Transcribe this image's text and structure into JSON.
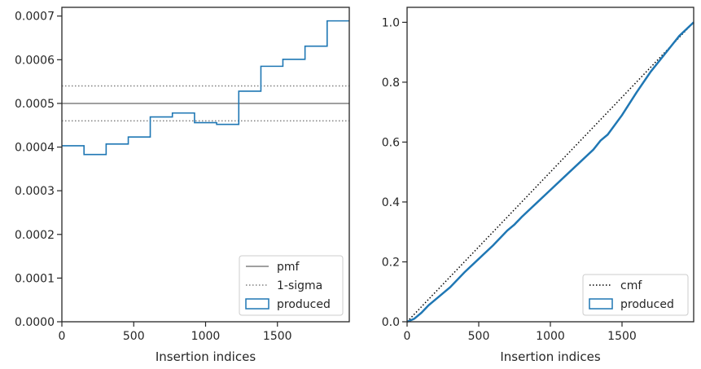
{
  "chart_data": [
    {
      "type": "line",
      "xlabel": "Insertion indices",
      "ylabel": "",
      "xlim": [
        0,
        2000
      ],
      "ylim": [
        0,
        0.00072
      ],
      "xticks": [
        0,
        500,
        1000,
        1500
      ],
      "xtick_labels": [
        "0",
        "500",
        "1000",
        "1500"
      ],
      "yticks": [
        0,
        0.0001,
        0.0002,
        0.0003,
        0.0004,
        0.0005,
        0.0006,
        0.0007
      ],
      "ytick_labels": [
        "0.0000",
        "0.0001",
        "0.0002",
        "0.0003",
        "0.0004",
        "0.0005",
        "0.0006",
        "0.0007"
      ],
      "grid": false,
      "legend_position": "lower-right",
      "series": [
        {
          "name": "pmf",
          "kind": "hline",
          "y": 0.0005,
          "color": "#808080",
          "style": "solid"
        },
        {
          "name": "1-sigma",
          "kind": "hlines",
          "y": [
            0.00054,
            0.00046
          ],
          "color": "#808080",
          "style": "dotted"
        },
        {
          "name": "produced",
          "kind": "step-histogram",
          "color": "#1f77b4",
          "bin_edges": [
            0,
            154,
            308,
            462,
            615,
            769,
            923,
            1077,
            1231,
            1385,
            1538,
            1692,
            1846,
            2000
          ],
          "values": [
            0.000403,
            0.000383,
            0.000407,
            0.000423,
            0.000469,
            0.000478,
            0.000456,
            0.000452,
            0.000528,
            0.000585,
            0.000601,
            0.000631,
            0.000689
          ]
        }
      ],
      "legend": [
        "pmf",
        "1-sigma",
        "produced"
      ]
    },
    {
      "type": "line",
      "xlabel": "Insertion indices",
      "ylabel": "",
      "xlim": [
        0,
        2000
      ],
      "ylim": [
        0,
        1.05
      ],
      "xticks": [
        0,
        500,
        1000,
        1500
      ],
      "xtick_labels": [
        "0",
        "500",
        "1000",
        "1500"
      ],
      "yticks": [
        0,
        0.2,
        0.4,
        0.6,
        0.8,
        1.0
      ],
      "ytick_labels": [
        "0.0",
        "0.2",
        "0.4",
        "0.6",
        "0.8",
        "1.0"
      ],
      "grid": false,
      "legend_position": "lower-right",
      "series": [
        {
          "name": "cmf",
          "kind": "line",
          "x": [
            0,
            2000
          ],
          "y": [
            0,
            1
          ],
          "color": "#000000",
          "style": "dotted"
        },
        {
          "name": "produced",
          "kind": "cumulative",
          "color": "#1f77b4",
          "x": [
            0,
            50,
            100,
            150,
            200,
            250,
            300,
            400,
            500,
            600,
            700,
            750,
            800,
            900,
            1000,
            1100,
            1200,
            1300,
            1350,
            1400,
            1500,
            1600,
            1700,
            1800,
            1900,
            2000
          ],
          "y": [
            0,
            0.01,
            0.03,
            0.055,
            0.075,
            0.095,
            0.115,
            0.165,
            0.21,
            0.255,
            0.305,
            0.325,
            0.35,
            0.395,
            0.44,
            0.485,
            0.53,
            0.575,
            0.605,
            0.625,
            0.69,
            0.765,
            0.835,
            0.895,
            0.955,
            1.0
          ]
        }
      ],
      "legend": [
        "cmf",
        "produced"
      ]
    }
  ]
}
